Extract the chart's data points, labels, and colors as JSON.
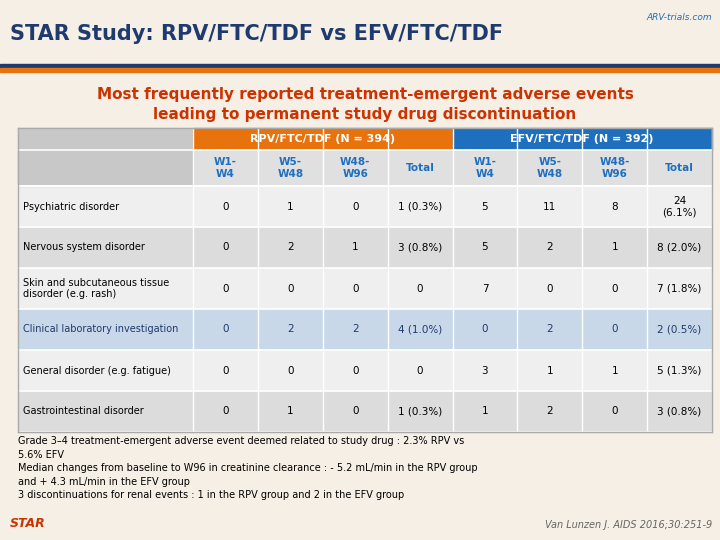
{
  "title": "STAR Study: RPV/FTC/TDF vs EFV/FTC/TDF",
  "subtitle_line1": "Most frequently reported treatment-emergent adverse events",
  "subtitle_line2": "leading to permanent study drug discontinuation",
  "bg_color": "#F5EFE6",
  "title_color": "#1F3A6E",
  "subtitle_color": "#CC3300",
  "header1_label": "RPV/FTC/TDF (N = 394)",
  "header2_label": "EFV/FTC/TDF (N = 392)",
  "header1_color": "#E8720C",
  "header2_color": "#1F6FBF",
  "sub_headers": [
    "W1-\nW4",
    "W5-\nW48",
    "W48-\nW96",
    "Total",
    "W1-\nW4",
    "W5-\nW48",
    "W48-\nW96",
    "Total"
  ],
  "sub_header_color": "#1F6FBF",
  "row_labels": [
    "Psychiatric disorder",
    "Nervous system disorder",
    "Skin and subcutaneous tissue\ndisorder (e.g. rash)",
    "Clinical laboratory investigation",
    "General disorder (e.g. fatigue)",
    "Gastrointestinal disorder"
  ],
  "table_data": [
    [
      "0",
      "1",
      "0",
      "1 (0.3%)",
      "5",
      "11",
      "8",
      "24\n(6.1%)"
    ],
    [
      "0",
      "2",
      "1",
      "3 (0.8%)",
      "5",
      "2",
      "1",
      "8 (2.0%)"
    ],
    [
      "0",
      "0",
      "0",
      "0",
      "7",
      "0",
      "0",
      "7 (1.8%)"
    ],
    [
      "0",
      "2",
      "2",
      "4 (1.0%)",
      "0",
      "2",
      "0",
      "2 (0.5%)"
    ],
    [
      "0",
      "0",
      "0",
      "0",
      "3",
      "1",
      "1",
      "5 (1.3%)"
    ],
    [
      "0",
      "1",
      "0",
      "1 (0.3%)",
      "1",
      "2",
      "0",
      "3 (0.8%)"
    ]
  ],
  "footer_text": "Grade 3–4 treatment-emergent adverse event deemed related to study drug : 2.3% RPV vs\n5.6% EFV\nMedian changes from baseline to W96 in creatinine clearance : - 5.2 mL/min in the RPV group\nand + 4.3 mL/min in the EFV group\n3 discontinuations for renal events : 1 in the RPV group and 2 in the EFV group",
  "star_label": "STAR",
  "star_color": "#CC3300",
  "citation": "Van Lunzen J. AIDS 2016;30:251-9",
  "citation_color": "#666666",
  "row_colors": [
    "#EFEFEF",
    "#DCDCDC",
    "#EFEFEF",
    "#C8D8E8",
    "#EFEFEF",
    "#DCDCDC"
  ],
  "row_label_colors": [
    "#000000",
    "#000000",
    "#000000",
    "#1F3A6E",
    "#000000",
    "#000000"
  ],
  "row_data_colors": [
    "#000000",
    "#000000",
    "#000000",
    "#1F3A6E",
    "#000000",
    "#000000"
  ],
  "table_header_bg": "#C8C8C8",
  "subheader_bg": "#E0E0E0",
  "divider_color_blue": "#1F3A6E",
  "divider_color_orange": "#E8720C",
  "grid_color": "#FFFFFF"
}
